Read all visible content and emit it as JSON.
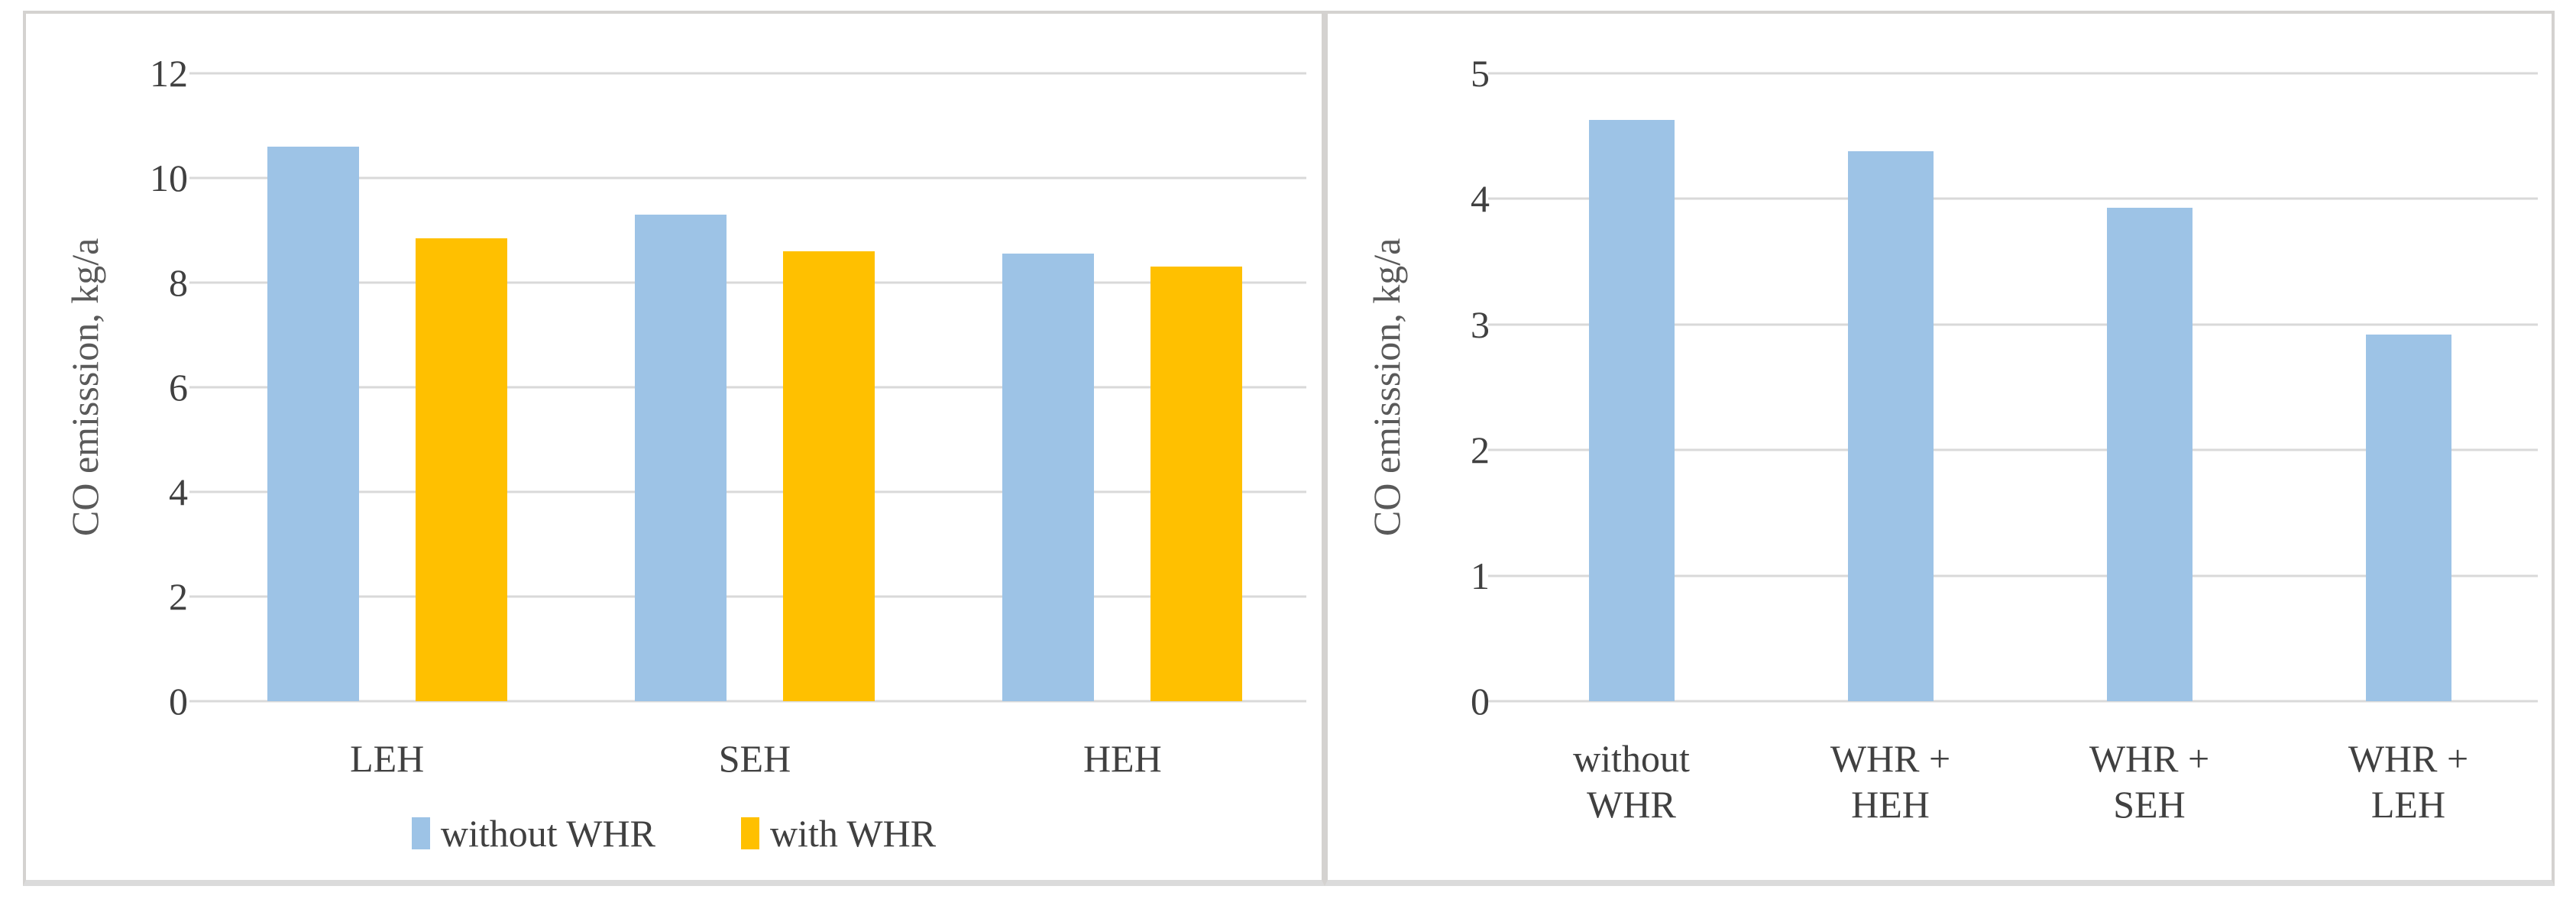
{
  "colors": {
    "series_blue": "#9DC3E6",
    "series_orange": "#FFC000",
    "gridline": "#D9D9D9",
    "axis_text": "#404040",
    "panel_border": "#D4D2D0",
    "background": "#FFFFFF"
  },
  "chart_data": [
    {
      "type": "bar",
      "title": "",
      "ylabel": "CO emisssion, kg/a",
      "xlabel": "",
      "ylim": [
        0,
        12
      ],
      "yticks": [
        0,
        2,
        4,
        6,
        8,
        10,
        12
      ],
      "grid": true,
      "legend_position": "bottom",
      "categories": [
        "LEH",
        "SEH",
        "HEH"
      ],
      "category_lines": [
        [
          "LEH"
        ],
        [
          "SEH"
        ],
        [
          "HEH"
        ]
      ],
      "series": [
        {
          "name": "without WHR",
          "color_key": "series_blue",
          "values": [
            10.6,
            9.3,
            8.55
          ]
        },
        {
          "name": "with WHR",
          "color_key": "series_orange",
          "values": [
            8.85,
            8.6,
            8.3
          ]
        }
      ]
    },
    {
      "type": "bar",
      "title": "",
      "ylabel": "CO emisssion, kg/a",
      "xlabel": "",
      "ylim": [
        0,
        5
      ],
      "yticks": [
        0,
        1,
        2,
        3,
        4,
        5
      ],
      "grid": true,
      "legend_position": "none",
      "categories": [
        "without WHR",
        "WHR + HEH",
        "WHR + SEH",
        "WHR + LEH"
      ],
      "category_lines": [
        [
          "without",
          "WHR"
        ],
        [
          "WHR +",
          "HEH"
        ],
        [
          "WHR +",
          "SEH"
        ],
        [
          "WHR +",
          "LEH"
        ]
      ],
      "series": [
        {
          "name": "without WHR",
          "color_key": "series_blue",
          "values": [
            4.63,
            4.38,
            3.93,
            2.92
          ]
        }
      ]
    }
  ]
}
